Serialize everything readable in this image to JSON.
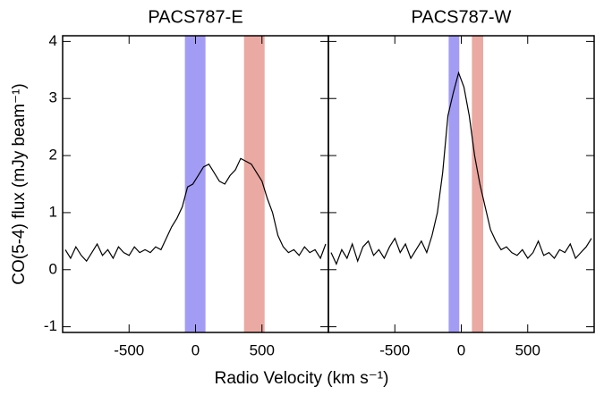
{
  "chart_data": [
    {
      "type": "line",
      "title": "PACS787-E",
      "ylabel": "CO(5-4) flux (mJy beam⁻¹)",
      "xlabel": "Radio Velocity (km s⁻¹)",
      "xlim": [
        -1000,
        1000
      ],
      "ylim": [
        -1.1,
        4.1
      ],
      "xticks": [
        -500,
        0,
        500
      ],
      "yticks": [
        -1,
        0,
        1,
        2,
        3,
        4
      ],
      "bands": [
        {
          "range": [
            -80,
            75
          ],
          "color": "#a29cf5"
        },
        {
          "range": [
            365,
            520
          ],
          "color": "#eaa9a2"
        }
      ],
      "x": [
        -980,
        -940,
        -900,
        -860,
        -820,
        -780,
        -740,
        -700,
        -660,
        -620,
        -580,
        -540,
        -500,
        -460,
        -420,
        -380,
        -340,
        -300,
        -260,
        -220,
        -180,
        -140,
        -100,
        -60,
        -20,
        20,
        60,
        100,
        140,
        180,
        220,
        260,
        300,
        340,
        380,
        420,
        460,
        500,
        540,
        580,
        620,
        660,
        700,
        740,
        780,
        820,
        860,
        900,
        940,
        980
      ],
      "series": [
        {
          "color": "#000000",
          "values": [
            0.35,
            0.2,
            0.4,
            0.25,
            0.15,
            0.3,
            0.45,
            0.25,
            0.35,
            0.2,
            0.4,
            0.3,
            0.25,
            0.4,
            0.3,
            0.35,
            0.3,
            0.4,
            0.35,
            0.55,
            0.75,
            0.9,
            1.1,
            1.45,
            1.5,
            1.65,
            1.8,
            1.85,
            1.7,
            1.55,
            1.5,
            1.65,
            1.75,
            1.95,
            1.9,
            1.85,
            1.7,
            1.55,
            1.25,
            1.0,
            0.6,
            0.4,
            0.3,
            0.35,
            0.25,
            0.4,
            0.3,
            0.35,
            0.2,
            0.45
          ]
        }
      ]
    },
    {
      "type": "line",
      "title": "PACS787-W",
      "xlim": [
        -1000,
        1000
      ],
      "ylim": [
        -1.1,
        4.1
      ],
      "xticks": [
        -500,
        0,
        500
      ],
      "bands": [
        {
          "range": [
            -95,
            -15
          ],
          "color": "#a29cf5"
        },
        {
          "range": [
            80,
            165
          ],
          "color": "#eaa9a2"
        }
      ],
      "x": [
        -980,
        -940,
        -900,
        -860,
        -820,
        -780,
        -740,
        -700,
        -660,
        -620,
        -580,
        -540,
        -500,
        -460,
        -420,
        -380,
        -340,
        -300,
        -260,
        -220,
        -180,
        -140,
        -100,
        -60,
        -20,
        20,
        60,
        100,
        140,
        180,
        220,
        260,
        300,
        340,
        380,
        420,
        460,
        500,
        540,
        580,
        620,
        660,
        700,
        740,
        780,
        820,
        860,
        900,
        940,
        980
      ],
      "series": [
        {
          "color": "#000000",
          "values": [
            0.3,
            0.1,
            0.35,
            0.2,
            0.45,
            0.15,
            0.4,
            0.5,
            0.25,
            0.35,
            0.2,
            0.4,
            0.55,
            0.3,
            0.45,
            0.2,
            0.35,
            0.5,
            0.3,
            0.6,
            1.0,
            1.7,
            2.7,
            3.1,
            3.45,
            3.2,
            2.7,
            2.0,
            1.5,
            1.1,
            0.7,
            0.5,
            0.35,
            0.4,
            0.3,
            0.25,
            0.35,
            0.2,
            0.3,
            0.5,
            0.25,
            0.3,
            0.2,
            0.35,
            0.3,
            0.45,
            0.2,
            0.3,
            0.4,
            0.55
          ]
        }
      ]
    }
  ]
}
